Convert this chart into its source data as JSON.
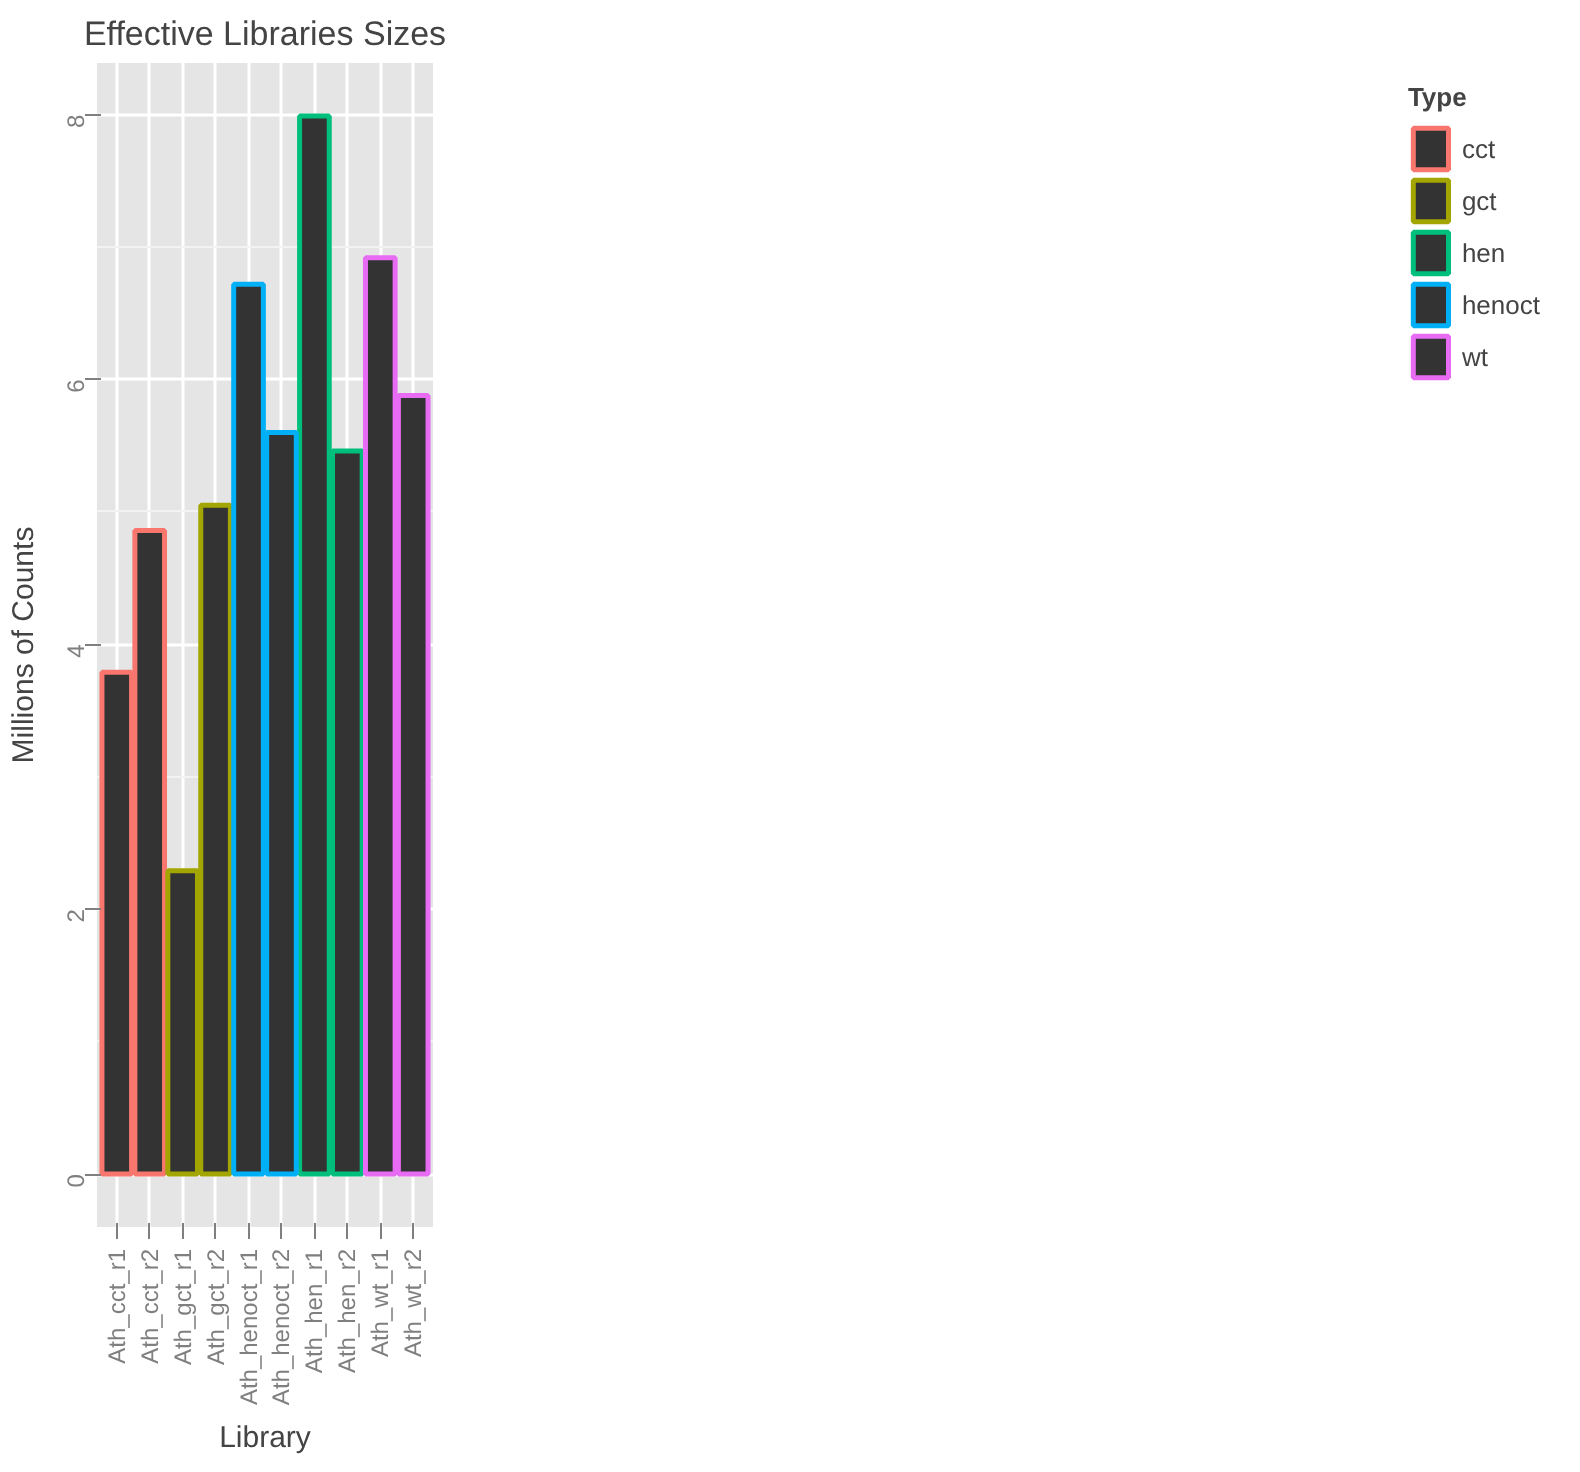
{
  "chart_data": {
    "type": "bar",
    "title": "Effective Libraries Sizes",
    "xlabel": "Library",
    "ylabel": "Millions of Counts",
    "legend_title": "Type",
    "categories": [
      "Ath_cct_r1",
      "Ath_cct_r2",
      "Ath_gct_r1",
      "Ath_gct_r2",
      "Ath_henoct_r1",
      "Ath_henoct_r2",
      "Ath_hen_r1",
      "Ath_hen_r2",
      "Ath_wt_r1",
      "Ath_wt_r2"
    ],
    "series": [
      {
        "name": "cct",
        "color": "#f8766d",
        "values": [
          3.79,
          4.86,
          null,
          null,
          null,
          null,
          null,
          null,
          null,
          null
        ]
      },
      {
        "name": "gct",
        "color": "#a3a500",
        "values": [
          null,
          null,
          2.29,
          5.05,
          null,
          null,
          null,
          null,
          null,
          null
        ]
      },
      {
        "name": "hen",
        "color": "#00bf7d",
        "values": [
          null,
          null,
          null,
          null,
          null,
          null,
          7.99,
          5.46,
          null,
          null
        ]
      },
      {
        "name": "henoct",
        "color": "#00b0f6",
        "values": [
          null,
          null,
          null,
          null,
          6.72,
          5.6,
          null,
          null,
          null,
          null
        ]
      },
      {
        "name": "wt",
        "color": "#e76bf3",
        "values": [
          null,
          null,
          null,
          null,
          null,
          null,
          null,
          null,
          6.92,
          5.88
        ]
      }
    ],
    "ylim": [
      -0.4,
      8.39
    ],
    "yticks": [
      0,
      2,
      4,
      6,
      8
    ],
    "grid": true,
    "legend": "right"
  }
}
